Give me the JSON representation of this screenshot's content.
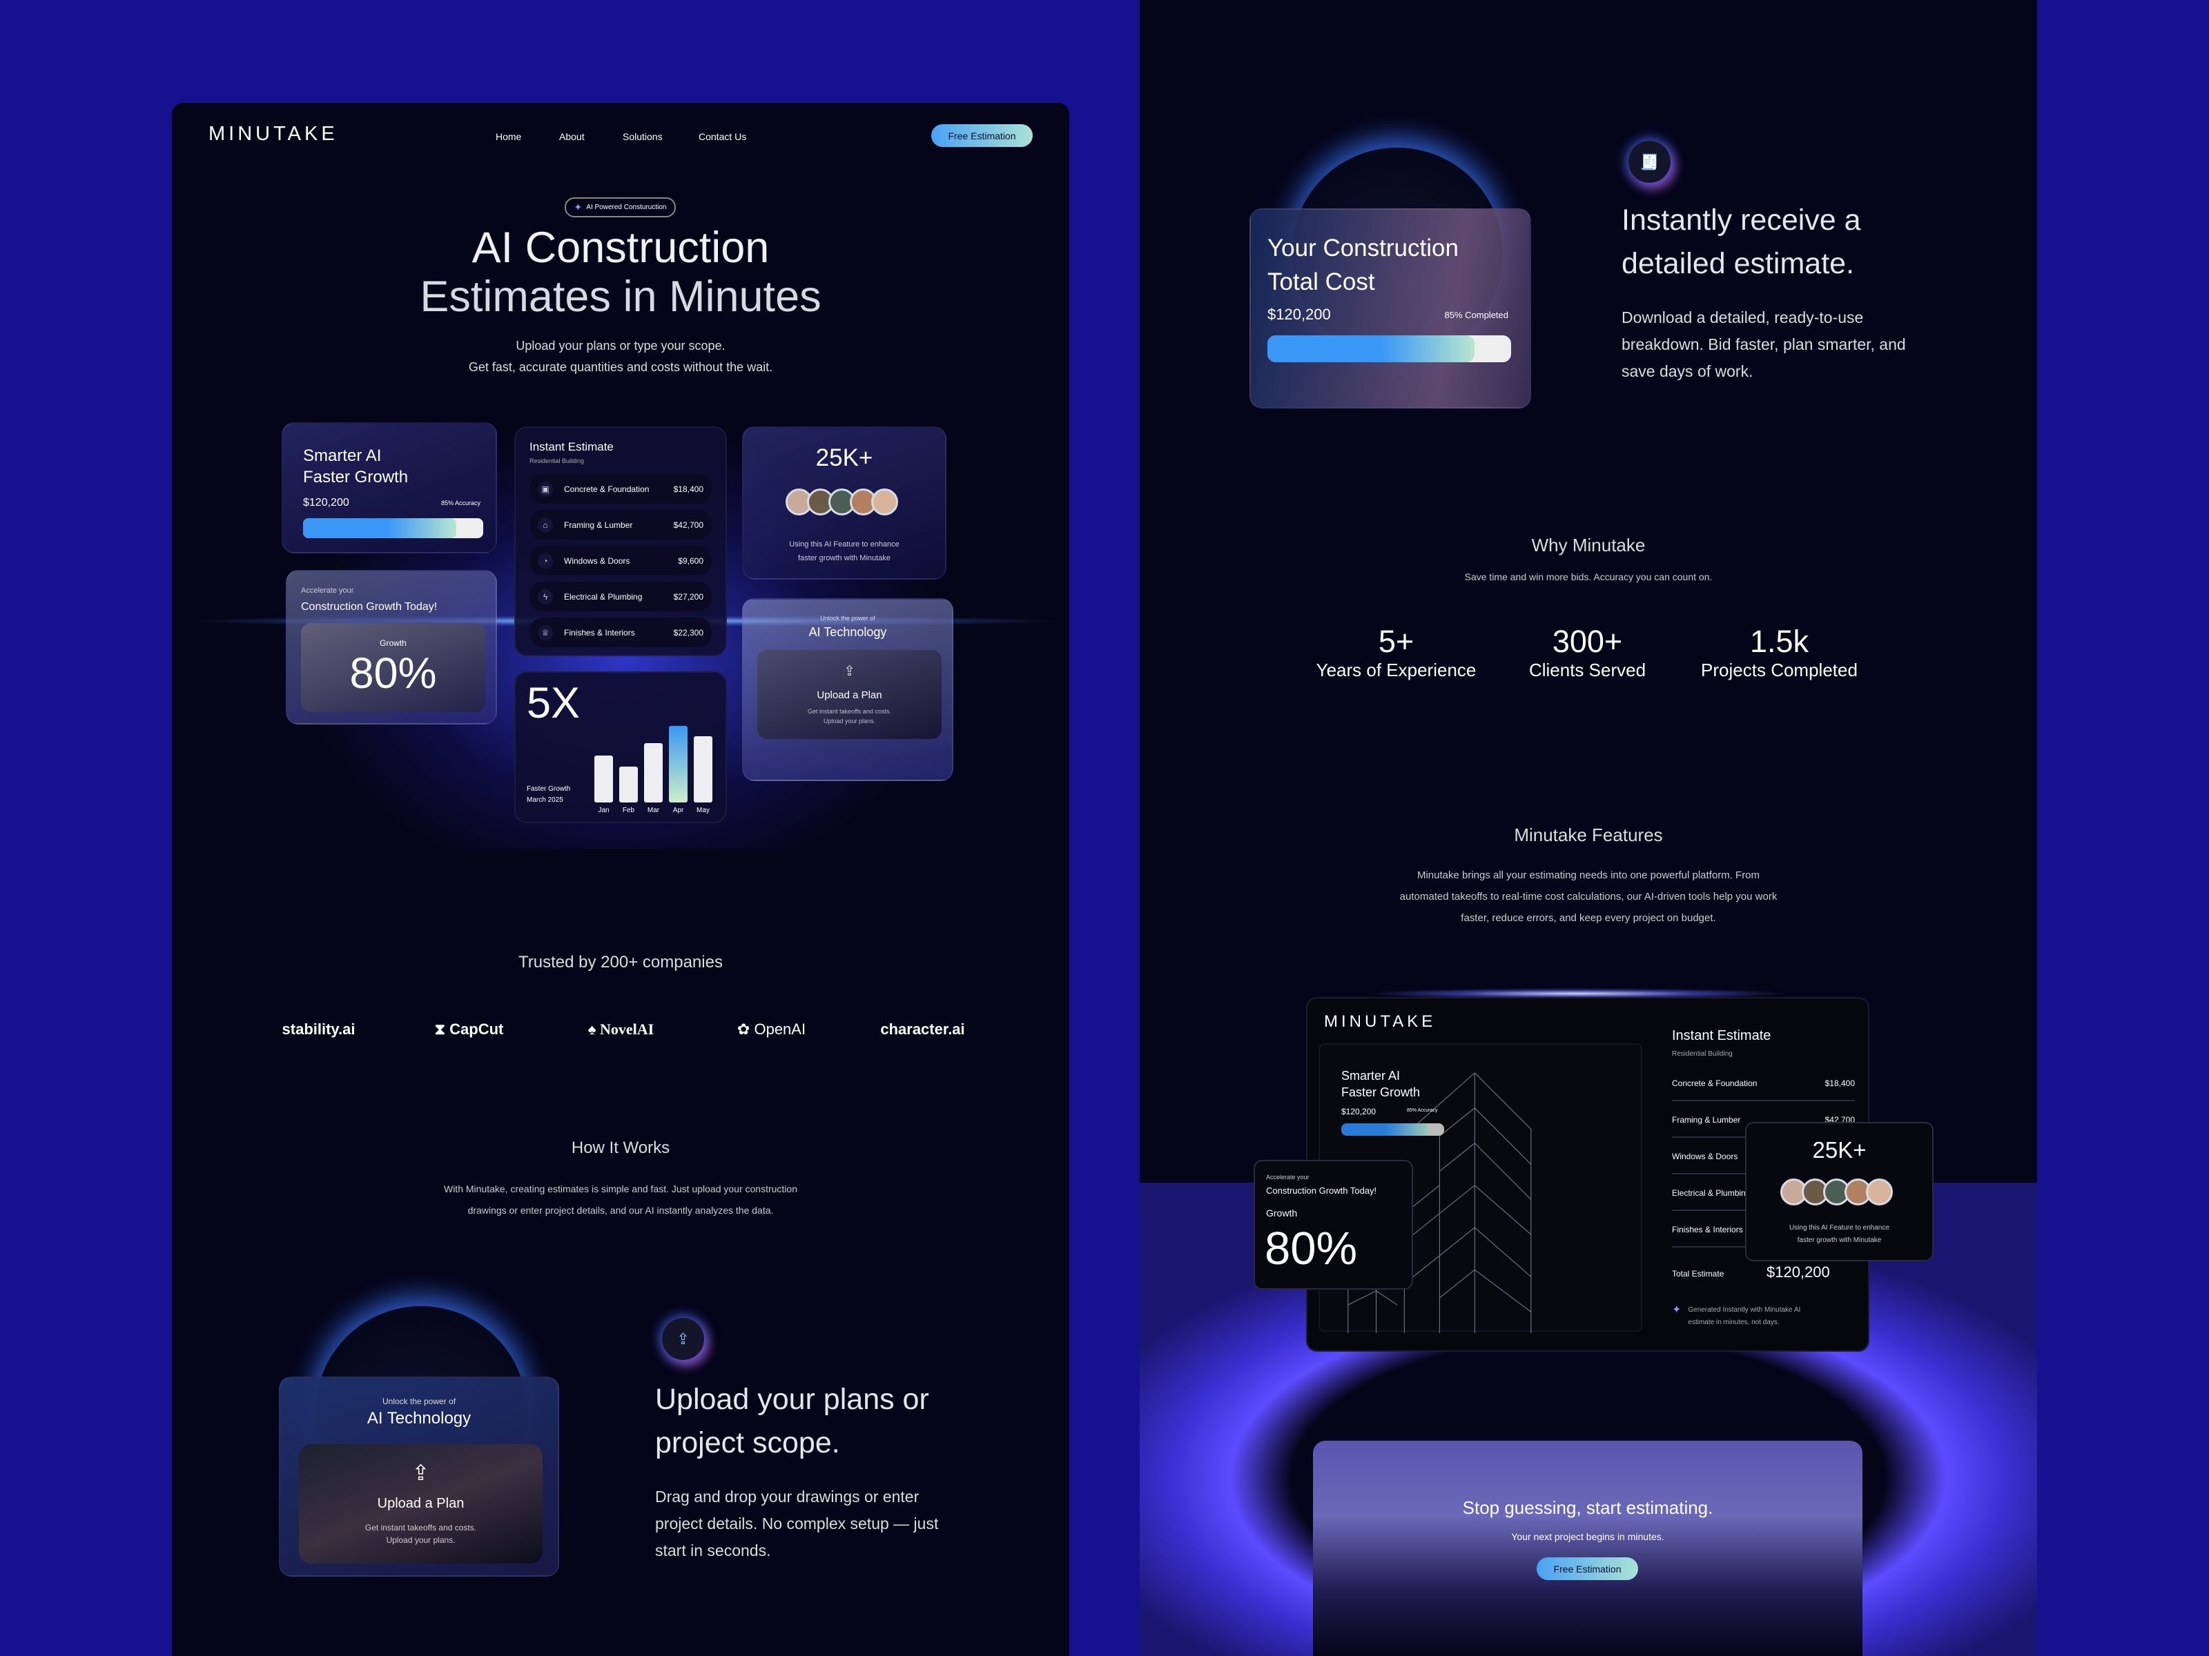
{
  "colors": {
    "background": "#15118f",
    "panel": "#05051a",
    "accent_blue": "#3a97f5",
    "accent_mint": "#a9e2d6"
  },
  "landing": {
    "logo": "MINUTAKE",
    "nav": [
      "Home",
      "About",
      "Solutions",
      "Contact Us"
    ],
    "cta": "Free Estimation",
    "badge": "AI Powered Consturuction",
    "title_line1": "AI Construction",
    "title_line2": "Estimates in Minutes",
    "subtitle_line1": "Upload your plans or type your scope.",
    "subtitle_line2": "Get fast, accurate quantities and costs without the wait.",
    "smarter_card": {
      "title1": "Smarter AI",
      "title2": "Faster Growth",
      "amount": "$120,200",
      "accuracy": "85% Accuracy",
      "progress": 0.85
    },
    "accelerate_card": {
      "kicker": "Accelerate your",
      "title": "Construction Growth Today!",
      "label": "Growth",
      "value": "80%"
    },
    "estimate_card": {
      "title": "Instant Estimate",
      "subtitle": "Residential Building",
      "rows": [
        {
          "icon": "foundation-icon",
          "label": "Concrete & Foundation",
          "value": "$18,400"
        },
        {
          "icon": "lumber-icon",
          "label": "Framing & Lumber",
          "value": "$42,700"
        },
        {
          "icon": "door-icon",
          "label": "Windows & Doors",
          "value": "$9,600"
        },
        {
          "icon": "bolt-icon",
          "label": "Electrical & Plumbing",
          "value": "$27,200"
        },
        {
          "icon": "crown-icon",
          "label": "Finishes & Interiors",
          "value": "$22,300"
        }
      ]
    },
    "growth_card": {
      "value": "5X",
      "label1": "Faster Growth",
      "label2": "March 2025",
      "bars": [
        {
          "month": "Jan",
          "value": 0.54,
          "highlight": false
        },
        {
          "month": "Feb",
          "value": 0.41,
          "highlight": false
        },
        {
          "month": "Mar",
          "value": 0.68,
          "highlight": false
        },
        {
          "month": "Apr",
          "value": 0.88,
          "highlight": true
        },
        {
          "month": "May",
          "value": 0.76,
          "highlight": false
        }
      ]
    },
    "users_card": {
      "value": "25K+",
      "text1": "Using this AI Feature to enhance",
      "text2": "faster growth with Minutake"
    },
    "ai_card": {
      "kicker": "Unlock the power of",
      "title": "AI Technology",
      "upload_title": "Upload a Plan",
      "upload_text1": "Get instant takeoffs and costs.",
      "upload_text2": "Upload your plans."
    },
    "trusted": "Trusted by 200+ companies",
    "logos": [
      "stability.ai",
      "CapCut",
      "NovelAI",
      "OpenAI",
      "character.ai"
    ],
    "how": {
      "title": "How It Works",
      "text1": "With Minutake, creating estimates is simple and fast. Just upload your construction",
      "text2": "drawings or enter project details, and our AI instantly analyzes the data."
    },
    "step1": {
      "card_kicker": "Unlock the power of",
      "card_title": "AI Technology",
      "upload_title": "Upload a Plan",
      "upload_text1": "Get instant takeoffs and costs.",
      "upload_text2": "Upload your plans.",
      "heading1": "Upload your plans or",
      "heading2": "project scope.",
      "text1": "Drag and drop your drawings or enter",
      "text2": "project details. No complex setup — just",
      "text3": "start in seconds."
    }
  },
  "detail": {
    "cost_card": {
      "title1": "Your Construction",
      "title2": "Total Cost",
      "amount": "$120,200",
      "status": "85% Completed",
      "progress": 0.85
    },
    "step2": {
      "heading1": "Instantly receive a",
      "heading2": "detailed estimate.",
      "text1": "Download a detailed, ready-to-use",
      "text2": "breakdown. Bid faster, plan smarter, and",
      "text3": "save days of work."
    },
    "why": {
      "title": "Why Minutake",
      "subtitle": "Save time and win more bids.  Accuracy you can count on.",
      "stats": [
        {
          "value": "5+",
          "label": "Years of Experience"
        },
        {
          "value": "300+",
          "label": "Clients Served"
        },
        {
          "value": "1.5k",
          "label": "Projects Completed"
        }
      ]
    },
    "features": {
      "title": "Minutake Features",
      "text1": "Minutake brings all your estimating needs into one powerful platform. From",
      "text2": "automated takeoffs to real-time cost calculations, our AI-driven tools help you work",
      "text3": "faster, reduce errors, and keep every project on budget."
    },
    "mock": {
      "logo": "MINUTAKE",
      "smarter1": "Smarter AI",
      "smarter2": "Faster Growth",
      "amount": "$120,200",
      "accuracy": "85% Accuracy",
      "progress": 0.85,
      "acc_kicker": "Accelerate your",
      "acc_title": "Construction Growth Today!",
      "growth": "Growth",
      "growth_value": "80%",
      "est_title": "Instant Estimate",
      "est_sub": "Residential Building",
      "rows": [
        {
          "label": "Concrete & Foundation",
          "value": "$18,400"
        },
        {
          "label": "Framing & Lumber",
          "value": "$42,700"
        },
        {
          "label": "Windows & Doors"
        },
        {
          "label": "Electrical & Plumbing"
        },
        {
          "label": "Finishes & Interiors"
        }
      ],
      "total_label": "Total Estimate",
      "total_value": "$120,200",
      "generated1": "Generated Instantly with Minutake AI",
      "generated2": "estimate in minutes, not days.",
      "users_value": "25K+",
      "users_text1": "Using this AI Feature to enhance",
      "users_text2": "faster growth with Minutake"
    },
    "cta": {
      "title": "Stop guessing, start estimating.",
      "subtitle": "Your next project begins in minutes.",
      "button": "Free Estimation"
    }
  }
}
